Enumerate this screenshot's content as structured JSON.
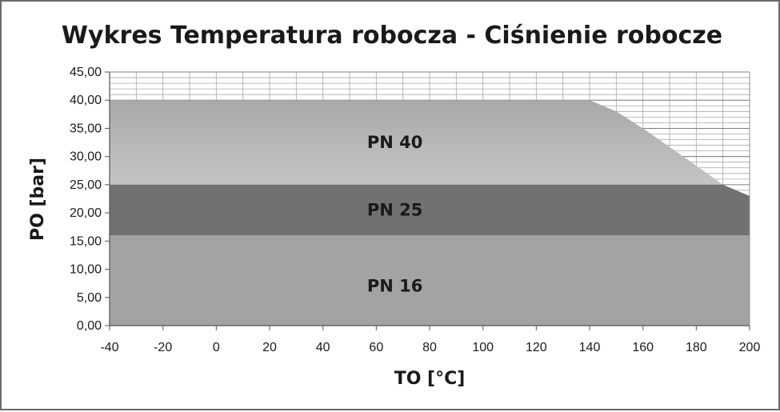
{
  "chart_data": {
    "type": "area",
    "title": "Wykres Temperatura robocza - Ciśnienie robocze",
    "xlabel": "TO [°C]",
    "ylabel": "PO  [bar]",
    "xlim": [
      -40,
      200
    ],
    "ylim": [
      0,
      45
    ],
    "x_ticks": [
      "-40",
      "-20",
      "0",
      "20",
      "40",
      "60",
      "80",
      "100",
      "120",
      "140",
      "160",
      "180",
      "200"
    ],
    "y_ticks": [
      "0,00",
      "5,00",
      "10,00",
      "15,00",
      "20,00",
      "25,00",
      "30,00",
      "35,00",
      "40,00",
      "45,00"
    ],
    "grid": true,
    "series": [
      {
        "name": "PN 40",
        "color": "#b9b9b9",
        "points": [
          [
            -40,
            40
          ],
          [
            140,
            40
          ],
          [
            150,
            38
          ],
          [
            160,
            35
          ],
          [
            170,
            31.7
          ],
          [
            180,
            28.4
          ],
          [
            190,
            25
          ],
          [
            200,
            23
          ]
        ]
      },
      {
        "name": "PN 25",
        "color": "#717171",
        "points": [
          [
            -40,
            25
          ],
          [
            190,
            25
          ],
          [
            200,
            23
          ]
        ]
      },
      {
        "name": "PN 16",
        "color": "#a3a3a3",
        "points": [
          [
            -40,
            16
          ],
          [
            200,
            16
          ]
        ]
      }
    ]
  }
}
